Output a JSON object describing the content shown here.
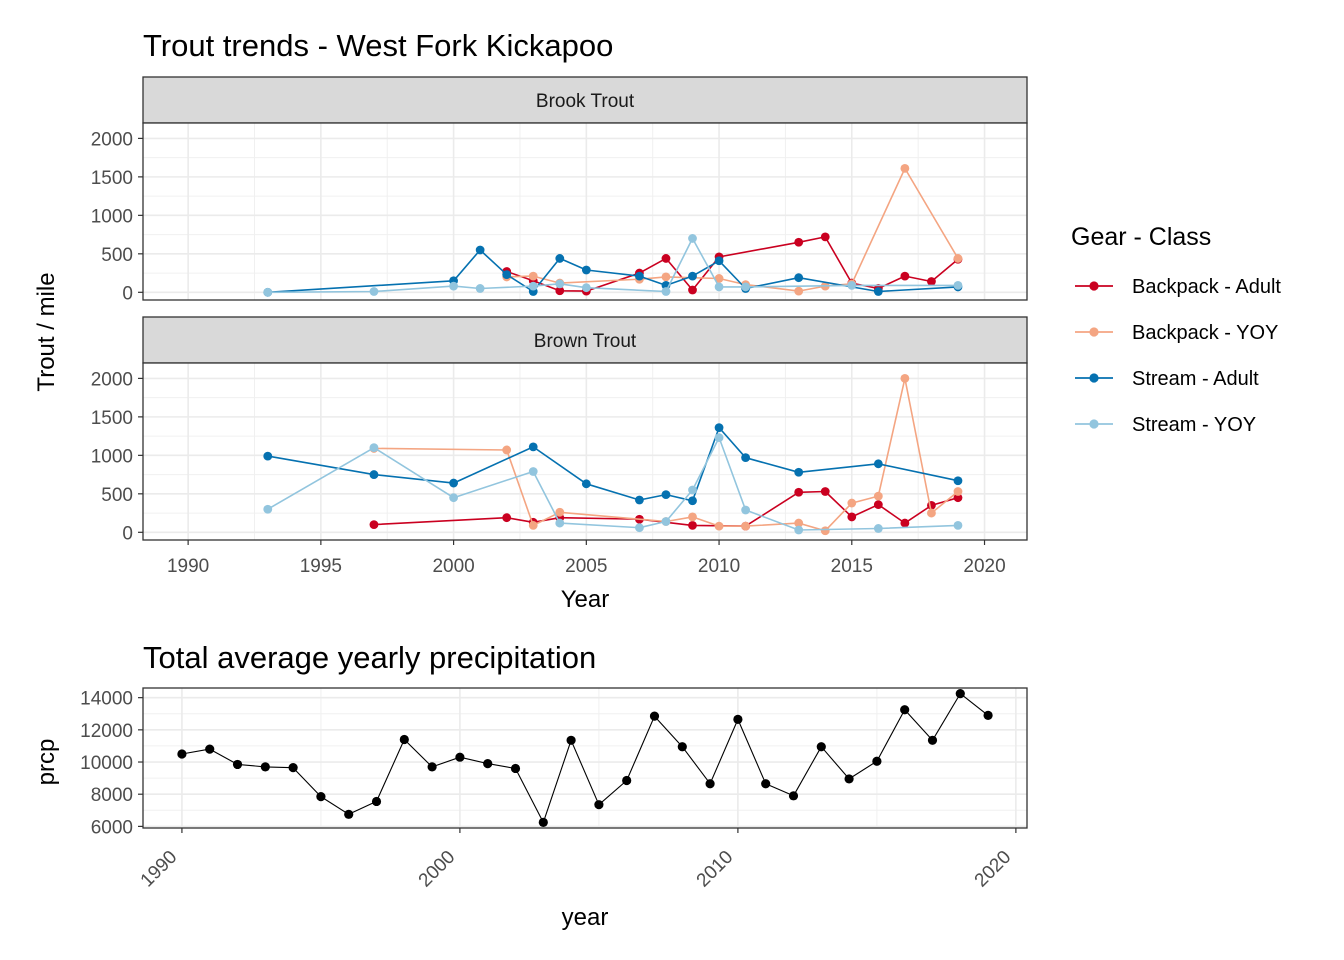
{
  "chart_data": [
    {
      "type": "line",
      "title": "Trout trends - West Fork Kickapoo",
      "xlabel": "Year",
      "ylabel": "Trout / mile",
      "xlim": [
        1988.3,
        2021.6
      ],
      "ylim": [
        -100,
        2200
      ],
      "x_ticks": [
        1990,
        1995,
        2000,
        2005,
        2010,
        2015,
        2020
      ],
      "y_ticks": [
        0,
        500,
        1000,
        1500,
        2000
      ],
      "grid": true,
      "legend": {
        "title": "Gear - Class",
        "position": "right",
        "entries": [
          "Backpack - Adult",
          "Backpack - YOY",
          "Stream - Adult",
          "Stream - YOY"
        ]
      },
      "colors": {
        "Backpack - Adult": "#ca0020",
        "Backpack - YOY": "#f4a582",
        "Stream - Adult": "#0571b0",
        "Stream - YOY": "#92c5de"
      },
      "facets": [
        {
          "name": "Brook Trout",
          "series": [
            {
              "name": "Backpack - Adult",
              "x": [
                2002,
                2003,
                2004,
                2005,
                2007,
                2008,
                2009,
                2010,
                2013,
                2014,
                2015,
                2016,
                2017,
                2018,
                2019
              ],
              "y": [
                270,
                150,
                20,
                15,
                250,
                440,
                30,
                460,
                650,
                720,
                120,
                50,
                210,
                140,
                430
              ]
            },
            {
              "name": "Backpack - YOY",
              "x": [
                2002,
                2003,
                2004,
                2007,
                2008,
                2010,
                2011,
                2013,
                2014,
                2015,
                2017,
                2019
              ],
              "y": [
                200,
                210,
                120,
                170,
                200,
                180,
                100,
                15,
                80,
                110,
                1610,
                440
              ]
            },
            {
              "name": "Stream - Adult",
              "x": [
                1993,
                2000,
                2001,
                2002,
                2003,
                2004,
                2005,
                2007,
                2008,
                2009,
                2010,
                2011,
                2013,
                2016,
                2019
              ],
              "y": [
                0,
                150,
                550,
                230,
                10,
                440,
                290,
                210,
                90,
                210,
                410,
                50,
                190,
                10,
                70
              ]
            },
            {
              "name": "Stream - YOY",
              "x": [
                1993,
                1997,
                2000,
                2001,
                2003,
                2004,
                2005,
                2008,
                2009,
                2010,
                2011,
                2015,
                2019
              ],
              "y": [
                0,
                10,
                80,
                50,
                80,
                110,
                60,
                10,
                700,
                70,
                70,
                90,
                90
              ]
            }
          ]
        },
        {
          "name": "Brown Trout",
          "series": [
            {
              "name": "Backpack - Adult",
              "x": [
                1997,
                2002,
                2003,
                2004,
                2007,
                2009,
                2011,
                2013,
                2014,
                2015,
                2016,
                2017,
                2018,
                2019
              ],
              "y": [
                100,
                190,
                130,
                190,
                170,
                90,
                80,
                520,
                530,
                200,
                360,
                120,
                350,
                450
              ]
            },
            {
              "name": "Backpack - YOY",
              "x": [
                1997,
                2002,
                2003,
                2004,
                2008,
                2009,
                2010,
                2011,
                2013,
                2014,
                2015,
                2016,
                2017,
                2018,
                2019
              ],
              "y": [
                1090,
                1070,
                90,
                260,
                140,
                200,
                80,
                80,
                120,
                20,
                380,
                470,
                2000,
                250,
                530
              ]
            },
            {
              "name": "Stream - Adult",
              "x": [
                1993,
                1997,
                2000,
                2003,
                2005,
                2007,
                2008,
                2009,
                2010,
                2011,
                2013,
                2016,
                2019
              ],
              "y": [
                990,
                750,
                640,
                1110,
                630,
                420,
                490,
                410,
                1360,
                970,
                780,
                890,
                670
              ]
            },
            {
              "name": "Stream - YOY",
              "x": [
                1993,
                1997,
                2000,
                2003,
                2004,
                2007,
                2008,
                2009,
                2010,
                2011,
                2013,
                2016,
                2019
              ],
              "y": [
                300,
                1100,
                450,
                790,
                120,
                60,
                140,
                550,
                1230,
                290,
                30,
                50,
                90
              ]
            }
          ]
        }
      ]
    },
    {
      "type": "line",
      "title": "Total average yearly precipitation",
      "xlabel": "year",
      "ylabel": "prcp",
      "xlim": [
        1988.6,
        2020.4
      ],
      "ylim": [
        5900,
        14600
      ],
      "x_ticks": [
        1990,
        2000,
        2010,
        2020
      ],
      "y_ticks": [
        6000,
        8000,
        10000,
        12000,
        14000
      ],
      "x_tick_rotation": 45,
      "grid": true,
      "color": "#000000",
      "x": [
        1990,
        1991,
        1992,
        1993,
        1994,
        1995,
        1996,
        1997,
        1998,
        1999,
        2000,
        2001,
        2002,
        2003,
        2004,
        2005,
        2006,
        2007,
        2008,
        2009,
        2010,
        2011,
        2012,
        2013,
        2014,
        2015,
        2016,
        2017,
        2018,
        2019
      ],
      "y": [
        10500,
        10800,
        9850,
        9700,
        9650,
        7850,
        6750,
        7550,
        11400,
        9700,
        10300,
        9900,
        9600,
        6250,
        11350,
        7350,
        8850,
        12850,
        10950,
        8650,
        12650,
        8650,
        7900,
        10950,
        8950,
        10050,
        13250,
        11350,
        14250,
        12900
      ]
    }
  ]
}
